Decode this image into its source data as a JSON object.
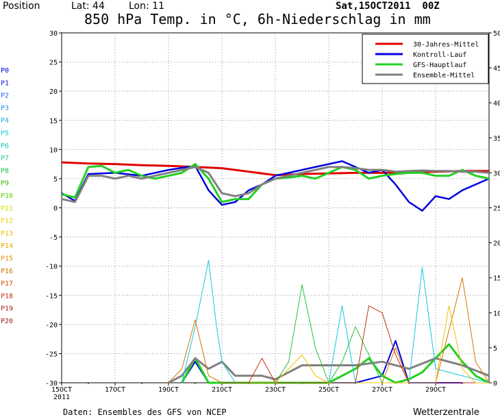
{
  "header": {
    "position_label": "Position",
    "lat_label": "Lat: 44",
    "lon_label": "Lon: 11",
    "datetime": "Sat,15OCT2011  00Z"
  },
  "footer": {
    "source": "Daten: Ensembles des GFS von NCEP",
    "brand": "Wetterzentrale"
  },
  "colors": {
    "mean30": "#e00000",
    "control": "#0000e0",
    "gfs": "#20d020",
    "ensemble_mean": "#808080"
  },
  "chart_data": {
    "type": "line",
    "title": "850 hPa Temp. in °C, 6h-Niederschlag in mm",
    "xlabel": "",
    "ylabel": "",
    "ylim": [
      -30,
      30
    ],
    "y2lim": [
      0,
      50
    ],
    "y_ticks": [
      "30",
      "25",
      "20",
      "15",
      "10",
      "5",
      "0",
      "-5",
      "-10",
      "-15",
      "-20",
      "-25",
      "-30"
    ],
    "y2_ticks": [
      "50",
      "45",
      "40",
      "35",
      "30",
      "25",
      "20",
      "15",
      "10",
      "5",
      "0"
    ],
    "x_ticks": [
      "15OCT",
      "17OCT",
      "19OCT",
      "21OCT",
      "23OCT",
      "25OCT",
      "27OCT",
      "29OCT"
    ],
    "x_tick_year": "2011",
    "xlim": [
      0,
      16.0
    ],
    "grid": true,
    "legend_position": "top-right",
    "legend": [
      {
        "label": "30-Jahres-Mittel",
        "color": "#e00000"
      },
      {
        "label": "Kontroll-Lauf",
        "color": "#0000e0"
      },
      {
        "label": "GFS-Hauptlauf",
        "color": "#20d020"
      },
      {
        "label": "Ensemble-Mittel",
        "color": "#808080"
      }
    ],
    "members": [
      {
        "label": "P0",
        "color": "#0000d0"
      },
      {
        "label": "P1",
        "color": "#1010e0"
      },
      {
        "label": "P2",
        "color": "#2060ff"
      },
      {
        "label": "P3",
        "color": "#2090f0"
      },
      {
        "label": "P4",
        "color": "#10b0e0"
      },
      {
        "label": "P5",
        "color": "#10c8d8"
      },
      {
        "label": "P6",
        "color": "#10c8b0"
      },
      {
        "label": "P7",
        "color": "#20c890"
      },
      {
        "label": "P8",
        "color": "#20c040"
      },
      {
        "label": "P9",
        "color": "#30c000"
      },
      {
        "label": "P10",
        "color": "#60d000"
      },
      {
        "label": "P11",
        "color": "#d8e000"
      },
      {
        "label": "P12",
        "color": "#f0d000"
      },
      {
        "label": "P13",
        "color": "#f0c000"
      },
      {
        "label": "P14",
        "color": "#e8a800"
      },
      {
        "label": "P15",
        "color": "#e89000"
      },
      {
        "label": "P16",
        "color": "#d87000"
      },
      {
        "label": "P17",
        "color": "#d05000"
      },
      {
        "label": "P18",
        "color": "#c03010"
      },
      {
        "label": "P19",
        "color": "#b02020"
      },
      {
        "label": "P20",
        "color": "#a02020"
      }
    ],
    "series": [
      {
        "name": "30-Jahres-Mittel",
        "color": "#e00000",
        "width": 3,
        "x": [
          0,
          1,
          2,
          3,
          4,
          5,
          6,
          7,
          8,
          9,
          10,
          11,
          12,
          13,
          14,
          15,
          16
        ],
        "y": [
          7.8,
          7.6,
          7.5,
          7.3,
          7.2,
          7.0,
          6.8,
          6.2,
          5.6,
          5.8,
          5.9,
          6.0,
          6.0,
          6.1,
          6.2,
          6.3,
          6.3
        ]
      },
      {
        "name": "Kontroll-Lauf",
        "color": "#0000e0",
        "width": 2.5,
        "x": [
          0,
          0.5,
          1,
          2,
          3,
          4,
          5,
          5.5,
          6,
          6.5,
          7,
          7.5,
          8,
          8.5,
          9,
          10,
          10.5,
          11,
          11.5,
          12,
          12.5,
          13,
          13.5,
          14,
          14.5,
          15,
          16
        ],
        "y": [
          2.5,
          1.2,
          5.8,
          6.0,
          5.5,
          6.5,
          7.2,
          3.0,
          0.5,
          1.0,
          3.0,
          4.0,
          5.5,
          6.0,
          6.5,
          7.5,
          8.0,
          7.0,
          6.0,
          6.5,
          4.0,
          1.0,
          -0.5,
          2.0,
          1.5,
          3.0,
          5.0
        ]
      },
      {
        "name": "GFS-Hauptlauf",
        "color": "#20d020",
        "width": 3,
        "x": [
          0,
          0.5,
          1,
          1.5,
          2,
          2.5,
          3,
          3.5,
          4,
          4.5,
          5,
          5.5,
          6,
          6.5,
          7,
          7.5,
          8,
          8.5,
          9,
          9.5,
          10,
          10.5,
          11,
          11.5,
          12,
          12.5,
          13,
          13.5,
          14,
          14.5,
          15,
          15.5,
          16
        ],
        "y": [
          2.3,
          1.8,
          7.0,
          7.2,
          6.0,
          6.5,
          5.5,
          5.0,
          5.5,
          6.0,
          7.5,
          5.0,
          1.0,
          1.5,
          1.5,
          4.0,
          5.0,
          5.2,
          5.5,
          5.0,
          6.0,
          7.0,
          6.5,
          5.0,
          5.5,
          5.8,
          6.0,
          6.0,
          5.5,
          5.5,
          6.5,
          5.5,
          5.0
        ]
      },
      {
        "name": "Ensemble-Mittel",
        "color": "#808080",
        "width": 3,
        "x": [
          0,
          0.5,
          1,
          1.5,
          2,
          2.5,
          3,
          3.5,
          4,
          4.5,
          5,
          5.5,
          6,
          6.5,
          7,
          7.5,
          8,
          8.5,
          9,
          9.5,
          10,
          10.5,
          11,
          11.5,
          12,
          12.5,
          13,
          13.5,
          14,
          14.5,
          15,
          15.5,
          16
        ],
        "y": [
          1.5,
          1.0,
          5.5,
          5.5,
          5.0,
          5.5,
          5.0,
          5.5,
          6.0,
          6.5,
          7.0,
          6.0,
          2.5,
          2.0,
          2.5,
          4.0,
          5.0,
          5.5,
          6.0,
          6.5,
          7.0,
          7.0,
          6.8,
          6.5,
          6.5,
          6.2,
          6.3,
          6.4,
          6.3,
          6.3,
          6.2,
          6.2,
          6.0
        ]
      }
    ],
    "precip_series": [
      {
        "name": "Kontroll-Lauf",
        "color": "#0000e0",
        "width": 2,
        "x": [
          4.5,
          5,
          5.5,
          6,
          8,
          10,
          11,
          12,
          12.5,
          13,
          14,
          15
        ],
        "y": [
          0,
          3,
          0,
          0,
          0,
          0,
          0,
          1,
          6,
          0,
          0,
          0
        ]
      },
      {
        "name": "GFS-Hauptlauf",
        "color": "#20d020",
        "width": 3,
        "x": [
          4.5,
          5,
          5.5,
          6,
          8,
          10,
          11,
          11.5,
          12,
          12.5,
          13,
          13.5,
          14,
          14.5,
          15,
          15.5,
          16
        ],
        "y": [
          0,
          3.5,
          0,
          0,
          0,
          0,
          2,
          3.5,
          1,
          0,
          0.5,
          1.5,
          3.5,
          5.5,
          3,
          1,
          0
        ]
      },
      {
        "name": "Ensemble-Mittel",
        "color": "#808080",
        "width": 3,
        "x": [
          4,
          4.5,
          5,
          5.5,
          6,
          6.5,
          7,
          7.5,
          8,
          8.5,
          9,
          10,
          11,
          12,
          13,
          14,
          15,
          16
        ],
        "y": [
          0,
          1,
          3.5,
          2,
          3,
          1,
          1,
          1,
          0.5,
          1.5,
          2.5,
          2.5,
          2.5,
          3,
          2,
          3.5,
          2.5,
          1
        ]
      },
      {
        "name": "P4",
        "color": "#10c8d8",
        "width": 1,
        "x": [
          4.5,
          5,
          5.5,
          5.8,
          6,
          6.5,
          10,
          10.5,
          11,
          13,
          13.5,
          14,
          16
        ],
        "y": [
          0,
          8,
          17.5,
          8,
          3,
          0,
          0,
          11,
          0,
          0,
          16.5,
          2,
          0
        ]
      },
      {
        "name": "P8",
        "color": "#20c040",
        "width": 1,
        "x": [
          8,
          8.5,
          9,
          9.5,
          10,
          10.5,
          11,
          12,
          16
        ],
        "y": [
          0,
          3,
          14,
          5,
          0,
          3,
          8,
          0,
          0
        ]
      },
      {
        "name": "P16",
        "color": "#d87000",
        "width": 1,
        "x": [
          4,
          4.5,
          5,
          5.5,
          6,
          12,
          12.5,
          13,
          14,
          15,
          15.5,
          16
        ],
        "y": [
          0,
          2,
          9,
          1,
          0,
          0,
          5,
          0,
          0,
          15,
          3,
          0
        ]
      },
      {
        "name": "P18",
        "color": "#c03010",
        "width": 1,
        "x": [
          6,
          7,
          7.5,
          8,
          11,
          11.5,
          12,
          12.5,
          13,
          16
        ],
        "y": [
          0,
          0,
          3.5,
          0,
          0,
          11,
          10,
          4,
          0,
          0
        ]
      },
      {
        "name": "P13",
        "color": "#f0c000",
        "width": 1,
        "x": [
          8,
          9,
          9.5,
          10,
          14,
          14.5,
          15,
          15.5,
          16
        ],
        "y": [
          0,
          4,
          1,
          0,
          0,
          11,
          2,
          0,
          0
        ]
      }
    ]
  }
}
